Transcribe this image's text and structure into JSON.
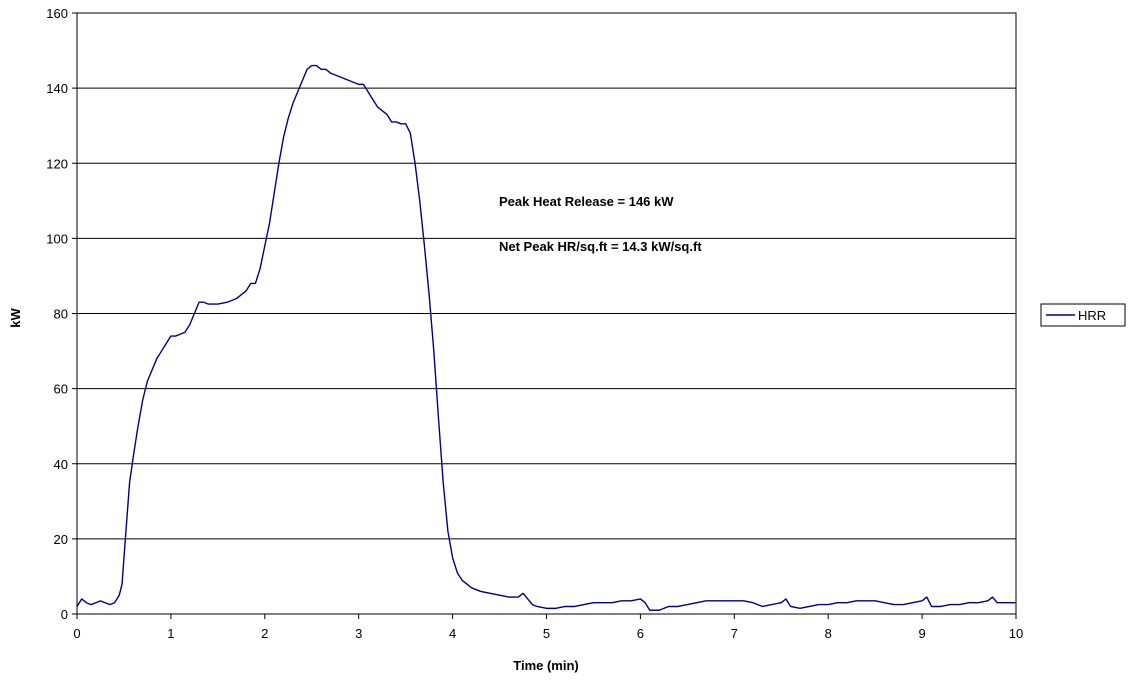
{
  "chart_data": {
    "type": "line",
    "title": "",
    "xlabel": "Time (min)",
    "ylabel": "kW",
    "xlim": [
      0,
      10
    ],
    "ylim": [
      0,
      160
    ],
    "x_ticks": [
      "0",
      "1",
      "2",
      "3",
      "4",
      "5",
      "6",
      "7",
      "8",
      "9",
      "10"
    ],
    "y_ticks": [
      "0",
      "20",
      "40",
      "60",
      "80",
      "100",
      "120",
      "140",
      "160"
    ],
    "grid": "horizontal",
    "legend_position": "right",
    "annotations": [
      "Peak Heat Release = 146 kW",
      "Net Peak HR/sq.ft = 14.3 kW/sq.ft"
    ],
    "series": [
      {
        "name": "HRR",
        "color": "#000080",
        "points": [
          [
            0.0,
            2
          ],
          [
            0.05,
            4
          ],
          [
            0.1,
            3
          ],
          [
            0.15,
            2.5
          ],
          [
            0.2,
            3
          ],
          [
            0.25,
            3.5
          ],
          [
            0.3,
            3
          ],
          [
            0.35,
            2.5
          ],
          [
            0.4,
            3
          ],
          [
            0.45,
            5
          ],
          [
            0.48,
            8
          ],
          [
            0.5,
            15
          ],
          [
            0.53,
            25
          ],
          [
            0.56,
            35
          ],
          [
            0.6,
            42
          ],
          [
            0.65,
            50
          ],
          [
            0.7,
            57
          ],
          [
            0.75,
            62
          ],
          [
            0.8,
            65
          ],
          [
            0.85,
            68
          ],
          [
            0.9,
            70
          ],
          [
            0.95,
            72
          ],
          [
            1.0,
            74
          ],
          [
            1.05,
            74
          ],
          [
            1.1,
            74.5
          ],
          [
            1.15,
            75
          ],
          [
            1.2,
            77
          ],
          [
            1.25,
            80
          ],
          [
            1.3,
            83
          ],
          [
            1.35,
            83
          ],
          [
            1.4,
            82.5
          ],
          [
            1.5,
            82.5
          ],
          [
            1.6,
            83
          ],
          [
            1.7,
            84
          ],
          [
            1.8,
            86
          ],
          [
            1.85,
            88
          ],
          [
            1.9,
            88
          ],
          [
            1.95,
            92
          ],
          [
            2.0,
            98
          ],
          [
            2.05,
            104
          ],
          [
            2.1,
            112
          ],
          [
            2.15,
            120
          ],
          [
            2.2,
            127
          ],
          [
            2.25,
            132
          ],
          [
            2.3,
            136
          ],
          [
            2.35,
            139
          ],
          [
            2.4,
            142
          ],
          [
            2.45,
            145
          ],
          [
            2.5,
            146
          ],
          [
            2.55,
            146
          ],
          [
            2.6,
            145
          ],
          [
            2.65,
            145
          ],
          [
            2.7,
            144
          ],
          [
            2.8,
            143
          ],
          [
            2.9,
            142
          ],
          [
            3.0,
            141
          ],
          [
            3.05,
            141
          ],
          [
            3.1,
            139
          ],
          [
            3.15,
            137
          ],
          [
            3.2,
            135
          ],
          [
            3.25,
            134
          ],
          [
            3.3,
            133
          ],
          [
            3.35,
            131
          ],
          [
            3.4,
            131
          ],
          [
            3.45,
            130.5
          ],
          [
            3.5,
            130.5
          ],
          [
            3.55,
            128
          ],
          [
            3.6,
            120
          ],
          [
            3.65,
            110
          ],
          [
            3.7,
            98
          ],
          [
            3.75,
            85
          ],
          [
            3.8,
            70
          ],
          [
            3.85,
            52
          ],
          [
            3.9,
            35
          ],
          [
            3.95,
            22
          ],
          [
            4.0,
            15
          ],
          [
            4.05,
            11
          ],
          [
            4.1,
            9
          ],
          [
            4.2,
            7
          ],
          [
            4.3,
            6
          ],
          [
            4.4,
            5.5
          ],
          [
            4.5,
            5
          ],
          [
            4.6,
            4.5
          ],
          [
            4.7,
            4.5
          ],
          [
            4.75,
            5.5
          ],
          [
            4.8,
            4
          ],
          [
            4.85,
            2.5
          ],
          [
            4.9,
            2
          ],
          [
            5.0,
            1.5
          ],
          [
            5.1,
            1.5
          ],
          [
            5.2,
            2
          ],
          [
            5.3,
            2
          ],
          [
            5.4,
            2.5
          ],
          [
            5.5,
            3
          ],
          [
            5.6,
            3
          ],
          [
            5.7,
            3
          ],
          [
            5.8,
            3.5
          ],
          [
            5.9,
            3.5
          ],
          [
            6.0,
            4
          ],
          [
            6.05,
            3
          ],
          [
            6.1,
            1
          ],
          [
            6.2,
            1
          ],
          [
            6.3,
            2
          ],
          [
            6.4,
            2
          ],
          [
            6.5,
            2.5
          ],
          [
            6.6,
            3
          ],
          [
            6.7,
            3.5
          ],
          [
            6.8,
            3.5
          ],
          [
            6.9,
            3.5
          ],
          [
            7.0,
            3.5
          ],
          [
            7.1,
            3.5
          ],
          [
            7.2,
            3
          ],
          [
            7.3,
            2
          ],
          [
            7.4,
            2.5
          ],
          [
            7.5,
            3
          ],
          [
            7.55,
            4
          ],
          [
            7.6,
            2
          ],
          [
            7.7,
            1.5
          ],
          [
            7.8,
            2
          ],
          [
            7.9,
            2.5
          ],
          [
            8.0,
            2.5
          ],
          [
            8.1,
            3
          ],
          [
            8.2,
            3
          ],
          [
            8.3,
            3.5
          ],
          [
            8.4,
            3.5
          ],
          [
            8.5,
            3.5
          ],
          [
            8.6,
            3
          ],
          [
            8.7,
            2.5
          ],
          [
            8.8,
            2.5
          ],
          [
            8.9,
            3
          ],
          [
            9.0,
            3.5
          ],
          [
            9.05,
            4.5
          ],
          [
            9.1,
            2
          ],
          [
            9.2,
            2
          ],
          [
            9.3,
            2.5
          ],
          [
            9.4,
            2.5
          ],
          [
            9.5,
            3
          ],
          [
            9.6,
            3
          ],
          [
            9.7,
            3.5
          ],
          [
            9.75,
            4.5
          ],
          [
            9.8,
            3
          ],
          [
            9.9,
            3
          ],
          [
            10.0,
            3
          ]
        ]
      }
    ]
  }
}
